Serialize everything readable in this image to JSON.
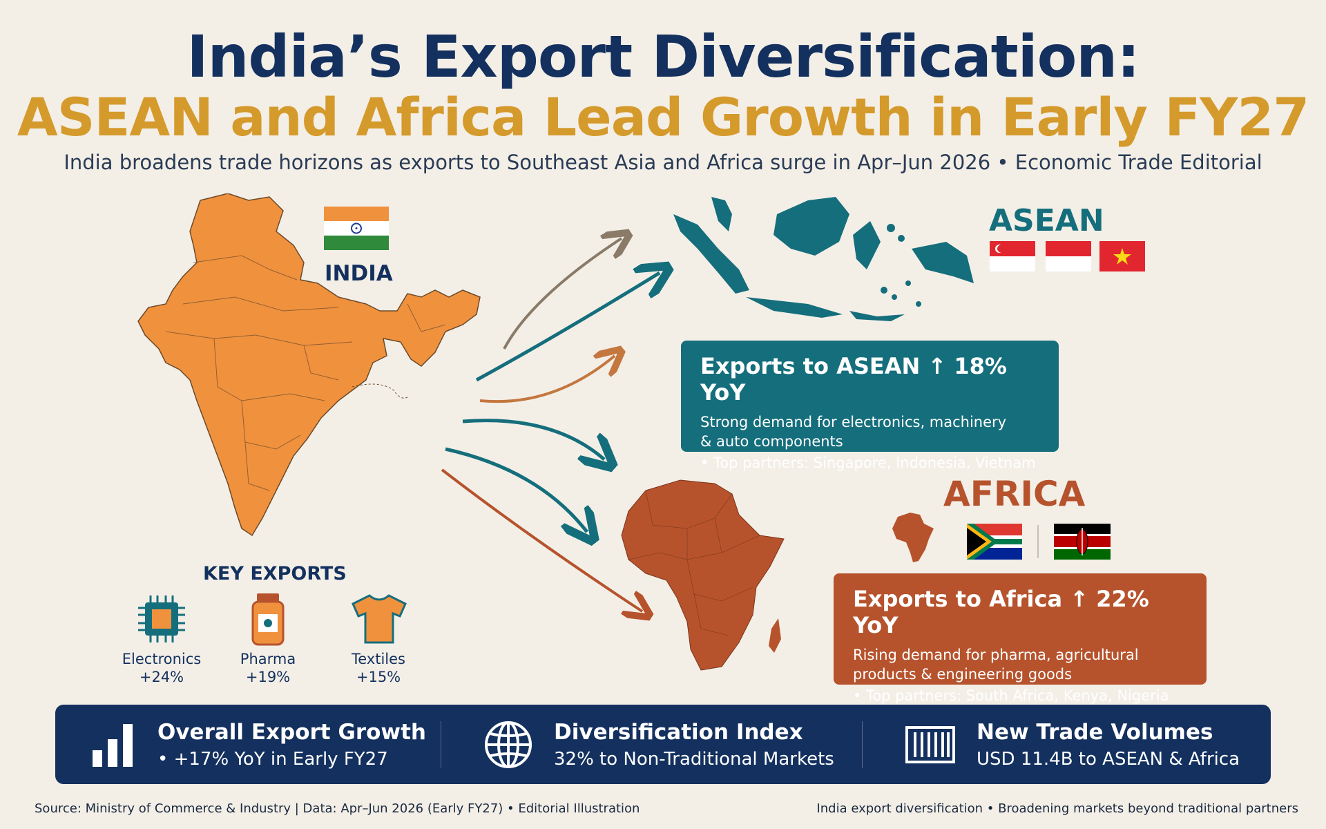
{
  "header": {
    "title_line1": "India’s Export Diversification:",
    "title_line2": "ASEAN and Africa Lead Growth in Early FY27",
    "subtitle": "India broadens trade horizons as exports to Southeast Asia and Africa surge in Apr–Jun 2026 • Economic Trade Editorial"
  },
  "india": {
    "label": "INDIA",
    "map_icon": "india-map-icon",
    "flag": "india-flag"
  },
  "asean": {
    "label": "ASEAN",
    "flags": [
      "singapore-flag",
      "indonesia-flag",
      "vietnam-flag"
    ],
    "callout": {
      "headline": "Exports to ASEAN ↑ 18% YoY",
      "desc_line1": "Strong demand for electronics, machinery",
      "desc_line2": "& auto components",
      "partners": "• Top partners: Singapore, Indonesia, Vietnam"
    },
    "color": "#156e7c"
  },
  "africa": {
    "label": "AFRICA",
    "flags": [
      "south-africa-flag",
      "kenya-flag"
    ],
    "callout": {
      "headline": "Exports to Africa ↑ 22% YoY",
      "desc_line1": "Rising demand for pharma, agricultural",
      "desc_line2": "products & engineering goods",
      "partners": "• Top partners: South Africa, Kenya, Nigeria"
    },
    "color": "#b6532d"
  },
  "key_exports": {
    "label": "KEY EXPORTS",
    "items": [
      {
        "name": "Electronics",
        "value": "+24%",
        "icon": "chip-icon"
      },
      {
        "name": "Pharma",
        "value": "+19%",
        "icon": "medicine-bottle-icon"
      },
      {
        "name": "Textiles",
        "value": "+15%",
        "icon": "tshirt-icon"
      }
    ]
  },
  "stats": [
    {
      "title": "Overall Export Growth",
      "value": "• +17% YoY in Early FY27",
      "icon": "bar-chart-icon"
    },
    {
      "title": "Diversification Index",
      "value": "32% to Non-Traditional Markets",
      "icon": "globe-icon"
    },
    {
      "title": "New Trade Volumes",
      "value": "USD 11.4B to ASEAN & Africa",
      "icon": "shipping-container-icon"
    }
  ],
  "footer": {
    "left": "Source: Ministry of Commerce & Industry | Data: Apr–Jun 2026 (Early FY27) • Editorial Illustration",
    "right": "India export diversification • Broadening markets beyond traditional partners"
  },
  "colors": {
    "navy": "#13305e",
    "gold": "#d59a2c",
    "orange": "#f0913e",
    "teal": "#156e7c",
    "rust": "#b6532d"
  }
}
